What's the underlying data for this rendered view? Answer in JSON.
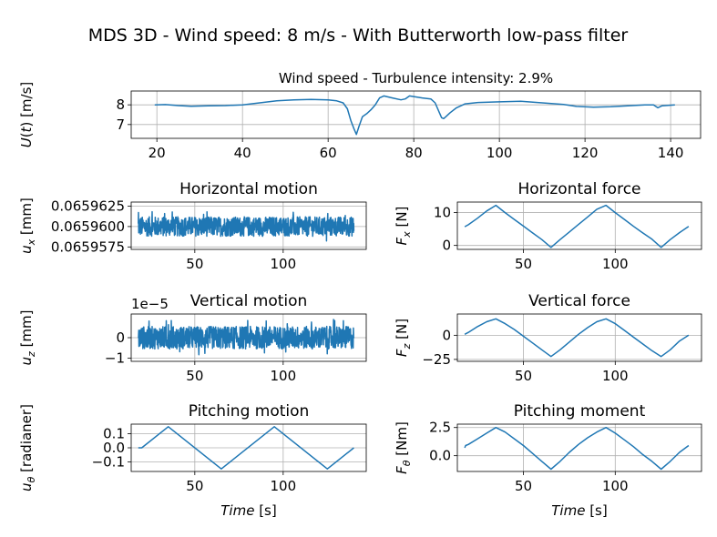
{
  "figure": {
    "title": "MDS 3D - Wind speed: 8 m/s - With Butterworth low-pass filter"
  },
  "chart_data": [
    {
      "id": "wind",
      "type": "line",
      "title": "Wind speed - Turbulence intensity: 2.9%",
      "ylabel": "U(t) [m/s]",
      "xlabel": "",
      "xlim": [
        14,
        147
      ],
      "ylim": [
        6.3,
        8.7
      ],
      "xticks": [
        "20",
        "40",
        "60",
        "80",
        "100",
        "120",
        "140"
      ],
      "xtick_values": [
        20,
        40,
        60,
        80,
        100,
        120,
        140
      ],
      "yticks": [
        "7",
        "8"
      ],
      "ytick_values": [
        7,
        8
      ],
      "grid": true,
      "color": "#1f77b4",
      "x": [
        19.5,
        22,
        25,
        28,
        32,
        36,
        40,
        44,
        48,
        52,
        56,
        60,
        62,
        63.5,
        64.5,
        65.3,
        66,
        66.6,
        67.2,
        68,
        69,
        70,
        71,
        72,
        73,
        75,
        77,
        78,
        79,
        80,
        82,
        84,
        85,
        86,
        86.5,
        87,
        87.5,
        88.5,
        90,
        92,
        95,
        100,
        105,
        110,
        115,
        118,
        122,
        126,
        130,
        134,
        136,
        137,
        138,
        141
      ],
      "y": [
        8.0,
        8.01,
        7.96,
        7.93,
        7.95,
        7.96,
        8.0,
        8.1,
        8.2,
        8.25,
        8.27,
        8.25,
        8.2,
        8.1,
        7.8,
        7.2,
        6.8,
        6.5,
        6.9,
        7.4,
        7.55,
        7.75,
        8.0,
        8.35,
        8.45,
        8.35,
        8.25,
        8.3,
        8.45,
        8.42,
        8.35,
        8.3,
        8.1,
        7.6,
        7.35,
        7.3,
        7.4,
        7.6,
        7.85,
        8.05,
        8.12,
        8.15,
        8.18,
        8.1,
        8.02,
        7.92,
        7.88,
        7.9,
        7.95,
        8.0,
        8.0,
        7.85,
        7.95,
        8.0
      ]
    },
    {
      "id": "hmotion",
      "type": "line",
      "title": "Horizontal motion",
      "ylabel": "u_x [mm]",
      "xlabel": "",
      "xlim": [
        14,
        147
      ],
      "ylim": [
        0.0659572,
        0.065963
      ],
      "xticks": [
        "50",
        "100"
      ],
      "xtick_values": [
        50,
        100
      ],
      "yticks": [
        "0.0659575",
        "0.0659600",
        "0.0659625"
      ],
      "ytick_values": [
        0.0659575,
        0.06596,
        0.0659625
      ],
      "grid": true,
      "color": "#1f77b4",
      "noise": {
        "x_start": 18,
        "x_end": 140,
        "center": 0.06596,
        "amplitude": 1.2e-06,
        "peak": 1.9e-06
      }
    },
    {
      "id": "hforce",
      "type": "line",
      "title": "Horizontal force",
      "ylabel": "F_x [N]",
      "xlabel": "",
      "xlim": [
        14,
        147
      ],
      "ylim": [
        -1.2,
        13.2
      ],
      "xticks": [
        "50",
        "100"
      ],
      "xtick_values": [
        50,
        100
      ],
      "yticks": [
        "0",
        "10"
      ],
      "ytick_values": [
        0,
        10
      ],
      "grid": true,
      "color": "#1f77b4",
      "x": [
        18,
        20,
        25,
        30,
        35,
        40,
        45,
        50,
        55,
        60,
        65,
        70,
        75,
        80,
        85,
        90,
        95,
        100,
        105,
        110,
        115,
        120,
        125,
        130,
        135,
        140
      ],
      "y": [
        5.7,
        6.3,
        8.3,
        10.5,
        12.2,
        10.0,
        7.9,
        5.9,
        3.8,
        1.8,
        -0.6,
        1.8,
        4.1,
        6.4,
        8.7,
        11.0,
        12.2,
        10.0,
        7.9,
        5.8,
        3.8,
        1.9,
        -0.6,
        1.8,
        3.9,
        5.8
      ]
    },
    {
      "id": "vmotion",
      "type": "line",
      "title": "Vertical motion",
      "ylabel": "u_z [mm]",
      "xlabel": "",
      "offset_label": "1e−5",
      "xlim": [
        14,
        147
      ],
      "ylim": [
        -1.15,
        1.15
      ],
      "xticks": [
        "50",
        "100"
      ],
      "xtick_values": [
        50,
        100
      ],
      "yticks": [
        "−1",
        "0"
      ],
      "ytick_values": [
        -1,
        0
      ],
      "grid": true,
      "color": "#1f77b4",
      "noise": {
        "x_start": 18,
        "x_end": 140,
        "center": 0,
        "amplitude": 0.55,
        "peak": 0.9
      }
    },
    {
      "id": "vforce",
      "type": "line",
      "title": "Vertical force",
      "ylabel": "F_z [N]",
      "xlabel": "",
      "xlim": [
        14,
        147
      ],
      "ylim": [
        -27,
        22
      ],
      "xticks": [
        "50",
        "100"
      ],
      "xtick_values": [
        50,
        100
      ],
      "yticks": [
        "−25",
        "0"
      ],
      "ytick_values": [
        -25,
        0
      ],
      "grid": true,
      "color": "#1f77b4",
      "x": [
        18,
        20,
        25,
        30,
        35,
        40,
        45,
        50,
        55,
        60,
        65,
        70,
        75,
        80,
        85,
        90,
        95,
        100,
        105,
        110,
        115,
        120,
        125,
        130,
        135,
        140
      ],
      "y": [
        1,
        3,
        9,
        14,
        17,
        12,
        6,
        -1,
        -8,
        -15,
        -22,
        -15,
        -7,
        1,
        8,
        14,
        17,
        12,
        5,
        -2,
        -9,
        -16,
        -22,
        -15,
        -6,
        0
      ]
    },
    {
      "id": "pmotion",
      "type": "line",
      "title": "Pitching motion",
      "ylabel": "u_θ [radianer]",
      "xlabel": "Time [s]",
      "xlim": [
        14,
        147
      ],
      "ylim": [
        -0.168,
        0.168
      ],
      "xticks": [
        "50",
        "100"
      ],
      "xtick_values": [
        50,
        100
      ],
      "yticks": [
        "−0.1",
        "0.0",
        "0.1"
      ],
      "ytick_values": [
        -0.1,
        0.0,
        0.1
      ],
      "grid": true,
      "color": "#1f77b4",
      "x": [
        18,
        20,
        35,
        65,
        95,
        125,
        140
      ],
      "y": [
        0.0,
        0.0,
        0.15,
        -0.15,
        0.15,
        -0.15,
        0.0
      ]
    },
    {
      "id": "pmoment",
      "type": "line",
      "title": "Pitching moment",
      "ylabel": "F_θ [Nm]",
      "xlabel": "Time [s]",
      "xlim": [
        14,
        147
      ],
      "ylim": [
        -1.4,
        2.8
      ],
      "xticks": [
        "50",
        "100"
      ],
      "xtick_values": [
        50,
        100
      ],
      "yticks": [
        "0.0",
        "2.5"
      ],
      "ytick_values": [
        0.0,
        2.5
      ],
      "grid": true,
      "color": "#1f77b4",
      "x": [
        18,
        18.5,
        20,
        25,
        30,
        35,
        40,
        45,
        50,
        55,
        60,
        65,
        70,
        75,
        80,
        85,
        90,
        95,
        100,
        105,
        110,
        115,
        120,
        125,
        130,
        135,
        140
      ],
      "y": [
        0.7,
        0.9,
        1.0,
        1.5,
        2.0,
        2.5,
        2.1,
        1.5,
        0.9,
        0.2,
        -0.5,
        -1.2,
        -0.5,
        0.3,
        1.0,
        1.6,
        2.1,
        2.5,
        2.0,
        1.4,
        0.8,
        0.1,
        -0.5,
        -1.2,
        -0.5,
        0.3,
        0.9
      ]
    }
  ]
}
